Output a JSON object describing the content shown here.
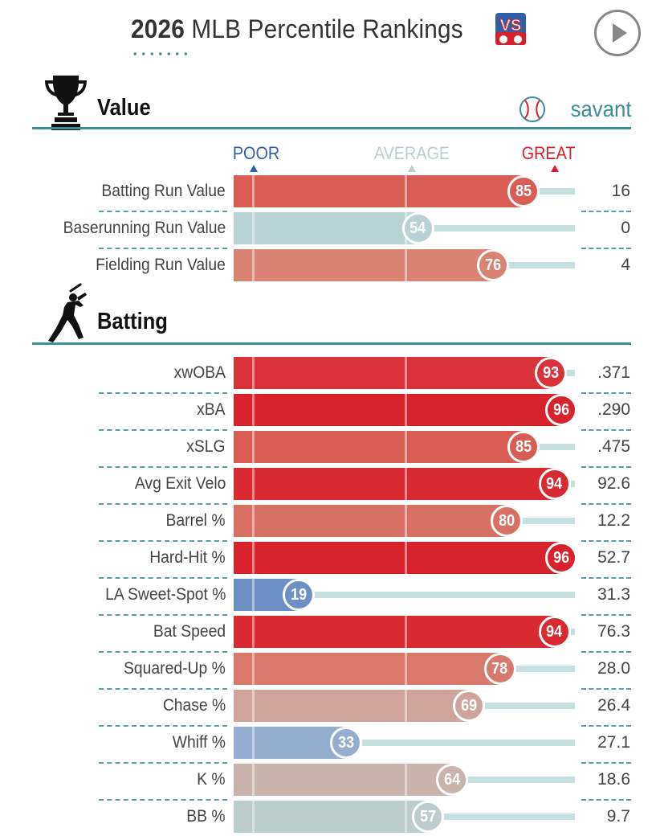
{
  "header": {
    "year": "2026",
    "title": "MLB Percentile Rankings",
    "vs_icon": "vs-icon",
    "play_icon": "play-icon"
  },
  "scale": {
    "poor": "POOR",
    "average": "AVERAGE",
    "great": "GREAT",
    "poor_color": "#2f5fa8",
    "average_color": "#b9cfd1",
    "great_color": "#d8202a"
  },
  "sections": {
    "value": {
      "title": "Value",
      "icon": "trophy-icon",
      "brand": "savant",
      "rows": [
        {
          "label": "Batting Run Value",
          "percentile": 85,
          "value": "16",
          "color": "#d95d53"
        },
        {
          "label": "Baserunning Run Value",
          "percentile": 54,
          "value": "0",
          "color": "#b9d2d4"
        },
        {
          "label": "Fielding Run Value",
          "percentile": 76,
          "value": "4",
          "color": "#d98373"
        }
      ]
    },
    "batting": {
      "title": "Batting",
      "icon": "batter-icon",
      "rows": [
        {
          "label": "xwOBA",
          "percentile": 93,
          "value": ".371",
          "color": "#d93238"
        },
        {
          "label": "xBA",
          "percentile": 96,
          "value": ".290",
          "color": "#d9232c"
        },
        {
          "label": "xSLG",
          "percentile": 85,
          "value": ".475",
          "color": "#d95d53"
        },
        {
          "label": "Avg Exit Velo",
          "percentile": 94,
          "value": "92.6",
          "color": "#d92a31"
        },
        {
          "label": "Barrel %",
          "percentile": 80,
          "value": "12.2",
          "color": "#d97064"
        },
        {
          "label": "Hard-Hit %",
          "percentile": 96,
          "value": "52.7",
          "color": "#d9232c"
        },
        {
          "label": "LA Sweet-Spot %",
          "percentile": 19,
          "value": "31.3",
          "color": "#6c8fc4"
        },
        {
          "label": "Bat Speed",
          "percentile": 94,
          "value": "76.3",
          "color": "#d92a31"
        },
        {
          "label": "Squared-Up %",
          "percentile": 78,
          "value": "28.0",
          "color": "#d9796b"
        },
        {
          "label": "Chase %",
          "percentile": 69,
          "value": "26.4",
          "color": "#cfa49c"
        },
        {
          "label": "Whiff %",
          "percentile": 33,
          "value": "27.1",
          "color": "#95aed0"
        },
        {
          "label": "K %",
          "percentile": 64,
          "value": "18.6",
          "color": "#c9b3ad"
        },
        {
          "label": "BB %",
          "percentile": 57,
          "value": "9.7",
          "color": "#bccdcc"
        }
      ]
    }
  }
}
